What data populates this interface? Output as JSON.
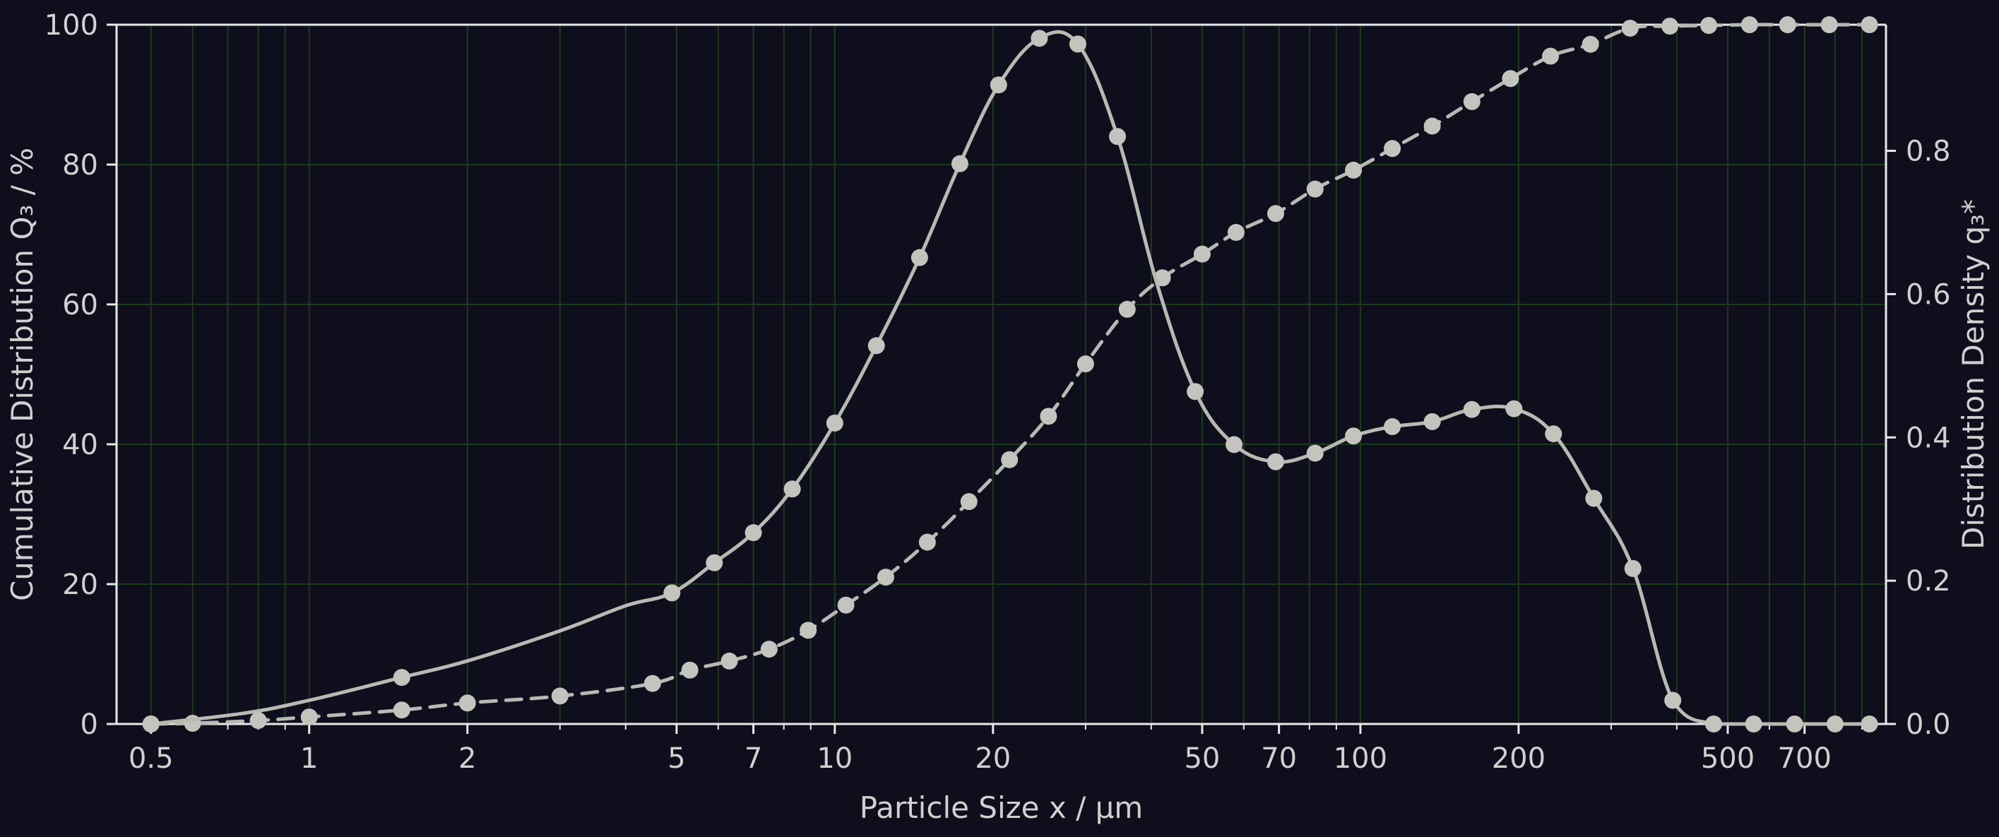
{
  "chart_data": {
    "type": "line",
    "xlabel": "Particle Size x / μm",
    "ylabel": "Cumulative Distribution Q₃ / %",
    "y2label": "Distribution Density q₃*",
    "x_scale": "log",
    "xlim": [
      0.43,
      1000
    ],
    "ylim": [
      0,
      100
    ],
    "y2lim": [
      0,
      0.976
    ],
    "x_ticks": [
      0.5,
      1,
      2,
      5,
      7,
      10,
      20,
      50,
      70,
      100,
      200,
      500,
      700
    ],
    "x_tick_labels": [
      "0.5",
      "1",
      "2",
      "5",
      "7",
      "10",
      "20",
      "50",
      "70",
      "100",
      "200",
      "500",
      "700"
    ],
    "y_ticks": [
      0,
      20,
      40,
      60,
      80,
      100
    ],
    "y_tick_labels": [
      "0",
      "20",
      "40",
      "60",
      "80",
      "100"
    ],
    "y2_ticks": [
      0,
      0.2,
      0.4,
      0.6,
      0.8
    ],
    "y2_tick_labels": [
      "0.0",
      "0.2",
      "0.4",
      "0.6",
      "0.8"
    ],
    "grid": true,
    "colors": {
      "background": "#0f0e1c",
      "axis": "#e8e8e8",
      "text": "#d0d0d0",
      "grid": "#1d3a1d",
      "series": "#b9b9b4",
      "marker": "#c4c4bf"
    },
    "series": [
      {
        "axis": "left",
        "style": "dashed",
        "x": [
          0.5,
          0.6,
          0.8,
          1,
          1.5,
          2,
          3,
          4.5,
          5.3,
          6.3,
          7.5,
          8.9,
          10.5,
          12.5,
          15,
          18,
          21.5,
          25.5,
          30,
          36,
          42,
          50,
          58,
          69,
          82,
          97,
          115,
          137,
          163,
          193,
          230,
          274,
          326,
          388,
          460,
          550,
          650,
          780,
          930
        ],
        "y": [
          0,
          0.1,
          0.5,
          1,
          2,
          3,
          4,
          5.8,
          7.7,
          9,
          10.7,
          13.4,
          17,
          21,
          26,
          31.8,
          37.8,
          44,
          51.5,
          59.3,
          63.8,
          67.2,
          70.3,
          73,
          76.5,
          79.2,
          82.3,
          85.5,
          89,
          92.3,
          95.5,
          97.2,
          99.5,
          99.8,
          99.9,
          100,
          100,
          100,
          100
        ]
      },
      {
        "axis": "right",
        "style": "solid",
        "x": [
          0.5,
          0.75,
          1,
          1.5,
          2,
          3,
          4,
          4.9,
          5.9,
          7,
          8.3,
          10,
          12,
          14.5,
          17.3,
          20.5,
          24.5,
          29,
          34.5,
          41,
          48.5,
          57.5,
          69,
          82,
          97,
          115,
          137,
          163,
          196,
          233,
          278,
          330,
          393,
          470,
          560,
          670,
          800,
          930
        ],
        "y": [
          0,
          0.015,
          0.033,
          0.065,
          0.088,
          0.13,
          0.165,
          0.183,
          0.225,
          0.267,
          0.328,
          0.42,
          0.528,
          0.651,
          0.782,
          0.892,
          0.957,
          0.949,
          0.82,
          0.615,
          0.464,
          0.39,
          0.366,
          0.378,
          0.402,
          0.415,
          0.422,
          0.439,
          0.44,
          0.405,
          0.315,
          0.217,
          0.033,
          0,
          0,
          0,
          0,
          0
        ],
        "marker_x": [
          0.5,
          1.5,
          4.9,
          5.9,
          7,
          8.3,
          10,
          12,
          14.5,
          17.3,
          20.5,
          24.5,
          29,
          34.5,
          48.5,
          57.5,
          69,
          82,
          97,
          115,
          137,
          163,
          196,
          233,
          278,
          330,
          393,
          470,
          560,
          670,
          800,
          930
        ],
        "marker_y": [
          0,
          0.065,
          0.183,
          0.225,
          0.267,
          0.328,
          0.42,
          0.528,
          0.651,
          0.782,
          0.892,
          0.957,
          0.949,
          0.82,
          0.464,
          0.39,
          0.366,
          0.378,
          0.402,
          0.415,
          0.422,
          0.439,
          0.44,
          0.405,
          0.315,
          0.217,
          0.033,
          0,
          0,
          0,
          0,
          0
        ]
      }
    ]
  }
}
